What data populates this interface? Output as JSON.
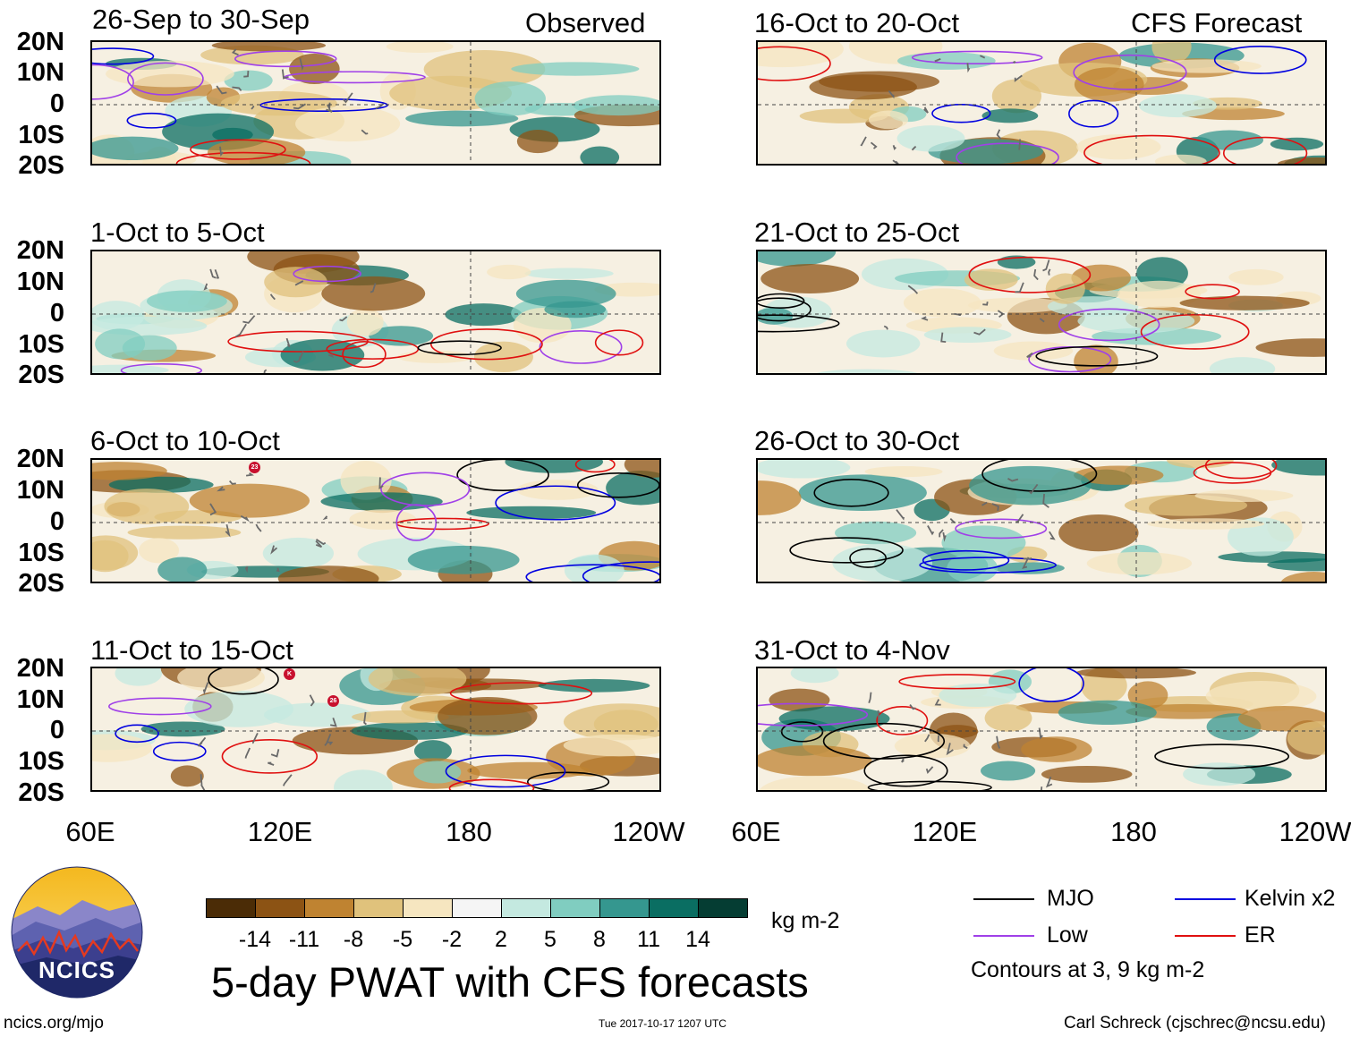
{
  "left_column_tag": "Observed",
  "right_column_tag": "CFS Forecast",
  "latitude_labels": [
    "20N",
    "10N",
    "0",
    "10S",
    "20S"
  ],
  "longitude_labels": [
    "60E",
    "120E",
    "180",
    "120W"
  ],
  "panels": [
    {
      "id": "p1",
      "title": "26-Sep to 30-Sep"
    },
    {
      "id": "p2",
      "title": "1-Oct to 5-Oct"
    },
    {
      "id": "p3",
      "title": "6-Oct to 10-Oct"
    },
    {
      "id": "p4",
      "title": "11-Oct to 15-Oct"
    },
    {
      "id": "p5",
      "title": "16-Oct to 20-Oct"
    },
    {
      "id": "p6",
      "title": "21-Oct to 25-Oct"
    },
    {
      "id": "p7",
      "title": "26-Oct to 30-Oct"
    },
    {
      "id": "p8",
      "title": "31-Oct to 4-Nov"
    }
  ],
  "storm_markers": [
    "23",
    "K",
    "26"
  ],
  "colorbar": {
    "colors": [
      "#4b2c06",
      "#8c5314",
      "#bf8331",
      "#e0c27c",
      "#f6e6c0",
      "#f5f5f5",
      "#c4e9e0",
      "#80cdc0",
      "#35978f",
      "#0a6e62",
      "#053d33"
    ],
    "labels": [
      "-14",
      "-11",
      "-8",
      "-5",
      "-2",
      "2",
      "5",
      "8",
      "11",
      "14"
    ],
    "units": "kg m-2"
  },
  "title": "5-day PWAT with CFS forecasts",
  "legend": {
    "items": [
      {
        "label": "MJO",
        "color": "#000000"
      },
      {
        "label": "Kelvin x2",
        "color": "#0000e0"
      },
      {
        "label": "Low",
        "color": "#a040e8"
      },
      {
        "label": "ER",
        "color": "#e01010"
      }
    ],
    "note": "Contours at 3, 9 kg m-2"
  },
  "logo": {
    "text": "NCICS"
  },
  "footer": {
    "url": "ncics.org/mjo",
    "timestamp": "Tue 2017-10-17 1207 UTC",
    "author": "Carl Schreck (cjschrec@ncsu.edu)"
  }
}
